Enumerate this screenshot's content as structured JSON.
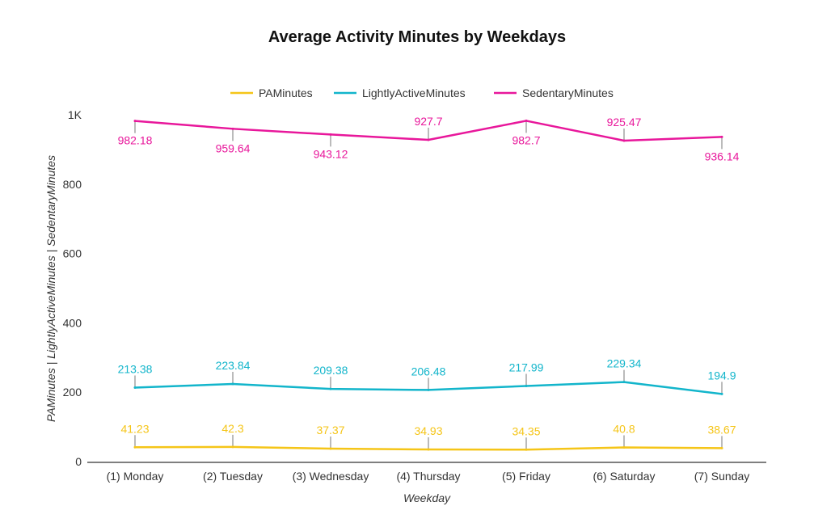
{
  "chart_data": {
    "type": "line",
    "title": "Average Activity Minutes by Weekdays",
    "xlabel": "Weekday",
    "ylabel": "PAMinutes | LightlyActiveMinutes | SedentaryMinutes",
    "categories": [
      "(1) Monday",
      "(2) Tuesday",
      "(3) Wednesday",
      "(4) Thursday",
      "(5) Friday",
      "(6) Saturday",
      "(7) Sunday"
    ],
    "ylim": [
      0,
      1000
    ],
    "yticks": [
      0,
      200,
      400,
      600,
      800,
      1000
    ],
    "ytick_labels": [
      "0",
      "200",
      "400",
      "600",
      "800",
      "1K"
    ],
    "grid": false,
    "legend_position": "top",
    "series": [
      {
        "name": "PAMinutes",
        "color": "#f5c518",
        "values": [
          41.23,
          42.3,
          37.37,
          34.93,
          34.35,
          40.8,
          38.67
        ],
        "labels": [
          "41.23",
          "42.3",
          "37.37",
          "34.93",
          "34.35",
          "40.8",
          "38.67"
        ]
      },
      {
        "name": "LightlyActiveMinutes",
        "color": "#12b5cb",
        "values": [
          213.38,
          223.84,
          209.38,
          206.48,
          217.99,
          229.34,
          194.9
        ],
        "labels": [
          "213.38",
          "223.84",
          "209.38",
          "206.48",
          "217.99",
          "229.34",
          "194.9"
        ]
      },
      {
        "name": "SedentaryMinutes",
        "color": "#e8179b",
        "values": [
          982.18,
          959.64,
          943.12,
          927.7,
          982.7,
          925.47,
          936.14
        ],
        "labels": [
          "982.18",
          "959.64",
          "943.12",
          "927.7",
          "982.7",
          "925.47",
          "936.14"
        ]
      }
    ]
  }
}
